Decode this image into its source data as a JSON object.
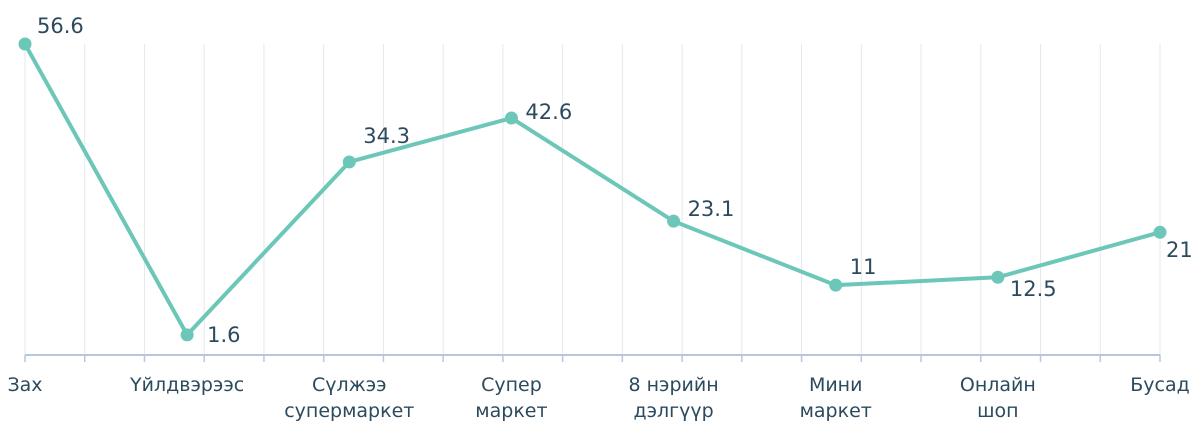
{
  "chart_data": {
    "type": "line",
    "categories": [
      "Зах",
      "Үйлдвэрээс",
      "Сүлжээ\nсупермаркет",
      "Супер\nмаркет",
      "8 нэрийн\nдэлгүүр",
      "Мини\nмаркет",
      "Онлайн\nшоп",
      "Бусад"
    ],
    "series": [
      {
        "color": "#6cc7b8",
        "values": [
          56.6,
          1.6,
          34.3,
          42.6,
          23.1,
          11,
          12.5,
          21
        ]
      }
    ],
    "ylim": [
      -2.2,
      56.6
    ]
  }
}
